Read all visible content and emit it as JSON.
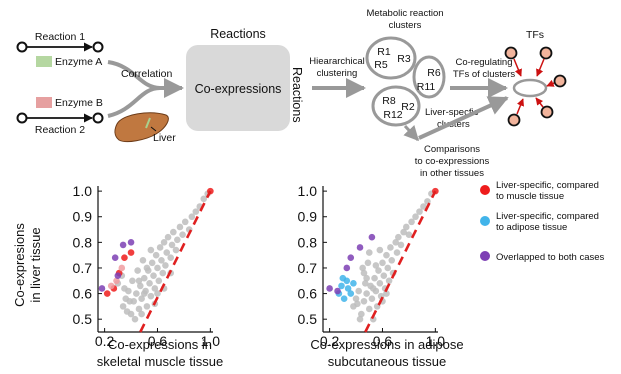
{
  "diagram": {
    "reaction1": "Reaction 1",
    "enzyme_a": "Enzyme A",
    "enzyme_b": "Enzyme B",
    "reaction2": "Reaction 2",
    "liver": "Liver",
    "correlation": "Correlation",
    "reactions_top": "Reactions",
    "reactions_side": "Reactions",
    "coexpressions": "Co-expressions",
    "hier_line1": "Hieararchical",
    "hier_line2": "clustering",
    "clusters_line1": "Metabolic reaction",
    "clusters_line2": "clusters",
    "c1a": "R1",
    "c1b": "R3",
    "c1c": "R5",
    "c2a": "R6",
    "c2b": "R11",
    "c3a": "R8",
    "c3b": "R2",
    "c3c": "R12",
    "liver_clusters_line1": "Liver-specfic",
    "liver_clusters_line2": "clusters",
    "coreg_line1": "Co-regulating",
    "coreg_line2": "TFs of clusters",
    "tfs": "TFs",
    "comp_line1": "Comparisons",
    "comp_line2": "to co-expressions",
    "comp_line3": "in other tissues",
    "colors": {
      "enzyme_a": "#b5d7a1",
      "enzyme_b": "#e6a0a0",
      "box": "#d9d9d9",
      "liver": "#c07840",
      "tf": "#f2b49c"
    }
  },
  "legend": {
    "items": [
      {
        "line1": "Liver-specific, compared",
        "line2": "to muscle tissue",
        "color": "#ee1c1c"
      },
      {
        "line1": "Liver-specific, compared",
        "line2": "to adipose tissue",
        "color": "#41b4ea"
      },
      {
        "line1": "Overlapped to both cases",
        "line2": "",
        "color": "#7d3fb4"
      }
    ]
  },
  "chart_data": [
    {
      "type": "scatter",
      "ylabel_line1": "Co-expresions",
      "ylabel_line2": "in liver tissue",
      "xlabel_line1": "Co-expressions in",
      "xlabel_line2": "skeletal muscle tissue",
      "xticks": [
        "0.2",
        "0.6",
        "1.0"
      ],
      "yticks": [
        "1.0",
        "0.9",
        "0.8",
        "0.7",
        "0.6",
        "0.5"
      ],
      "xlim": [
        0.15,
        1.02
      ],
      "ylim": [
        0.45,
        1.02
      ],
      "diagonal_color": "#e02020",
      "series": [
        {
          "color": "#bdbdbd",
          "points": [
            [
              0.34,
              0.55
            ],
            [
              0.36,
              0.58
            ],
            [
              0.38,
              0.61
            ],
            [
              0.4,
              0.52
            ],
            [
              0.42,
              0.57
            ],
            [
              0.44,
              0.6
            ],
            [
              0.46,
              0.54
            ],
            [
              0.47,
              0.63
            ],
            [
              0.48,
              0.58
            ],
            [
              0.5,
              0.66
            ],
            [
              0.51,
              0.61
            ],
            [
              0.52,
              0.55
            ],
            [
              0.53,
              0.69
            ],
            [
              0.54,
              0.64
            ],
            [
              0.55,
              0.59
            ],
            [
              0.56,
              0.72
            ],
            [
              0.57,
              0.67
            ],
            [
              0.58,
              0.62
            ],
            [
              0.59,
              0.75
            ],
            [
              0.6,
              0.7
            ],
            [
              0.61,
              0.65
            ],
            [
              0.62,
              0.78
            ],
            [
              0.63,
              0.73
            ],
            [
              0.64,
              0.68
            ],
            [
              0.65,
              0.8
            ],
            [
              0.66,
              0.71
            ],
            [
              0.67,
              0.76
            ],
            [
              0.68,
              0.82
            ],
            [
              0.7,
              0.74
            ],
            [
              0.71,
              0.79
            ],
            [
              0.72,
              0.84
            ],
            [
              0.74,
              0.77
            ],
            [
              0.75,
              0.81
            ],
            [
              0.77,
              0.86
            ],
            [
              0.79,
              0.83
            ],
            [
              0.81,
              0.88
            ],
            [
              0.84,
              0.85
            ],
            [
              0.86,
              0.9
            ],
            [
              0.89,
              0.92
            ],
            [
              0.92,
              0.94
            ],
            [
              0.95,
              0.97
            ],
            [
              0.98,
              0.99
            ],
            [
              0.3,
              0.64
            ],
            [
              0.33,
              0.67
            ],
            [
              0.37,
              0.53
            ],
            [
              0.41,
              0.65
            ],
            [
              0.45,
              0.69
            ],
            [
              0.49,
              0.73
            ],
            [
              0.43,
              0.5
            ],
            [
              0.39,
              0.57
            ],
            [
              0.55,
              0.77
            ],
            [
              0.6,
              0.6
            ],
            [
              0.5,
              0.6
            ],
            [
              0.46,
              0.65
            ],
            [
              0.58,
              0.56
            ],
            [
              0.52,
              0.7
            ],
            [
              0.48,
              0.52
            ],
            [
              0.65,
              0.62
            ],
            [
              0.7,
              0.68
            ],
            [
              0.35,
              0.62
            ]
          ]
        },
        {
          "color": "#ee1c1c",
          "points": [
            [
              0.22,
              0.6
            ],
            [
              0.27,
              0.62
            ],
            [
              0.31,
              0.68
            ],
            [
              0.35,
              0.74
            ],
            [
              0.4,
              0.76
            ],
            [
              1.0,
              1.0
            ]
          ]
        },
        {
          "color": "#f09ca0",
          "points": [
            [
              0.25,
              0.63
            ],
            [
              0.29,
              0.65
            ],
            [
              0.33,
              0.7
            ]
          ]
        },
        {
          "color": "#7d3fb4",
          "points": [
            [
              0.18,
              0.62
            ],
            [
              0.28,
              0.74
            ],
            [
              0.34,
              0.79
            ],
            [
              0.4,
              0.8
            ],
            [
              0.3,
              0.67
            ]
          ]
        }
      ]
    },
    {
      "type": "scatter",
      "xlabel_line1": "Co-expressions in adipose",
      "xlabel_line2": "subcutaneous tissue",
      "xticks": [
        "0.2",
        "0.6",
        "1.0"
      ],
      "yticks": [
        "1.0",
        "0.9",
        "0.8",
        "0.7",
        "0.6",
        "0.5"
      ],
      "xlim": [
        0.15,
        1.02
      ],
      "ylim": [
        0.45,
        1.02
      ],
      "diagonal_color": "#e02020",
      "series": [
        {
          "color": "#bdbdbd",
          "points": [
            [
              0.38,
              0.55
            ],
            [
              0.4,
              0.58
            ],
            [
              0.42,
              0.61
            ],
            [
              0.44,
              0.52
            ],
            [
              0.46,
              0.57
            ],
            [
              0.48,
              0.6
            ],
            [
              0.5,
              0.54
            ],
            [
              0.51,
              0.63
            ],
            [
              0.52,
              0.58
            ],
            [
              0.54,
              0.66
            ],
            [
              0.55,
              0.61
            ],
            [
              0.56,
              0.55
            ],
            [
              0.57,
              0.69
            ],
            [
              0.58,
              0.64
            ],
            [
              0.59,
              0.59
            ],
            [
              0.6,
              0.72
            ],
            [
              0.61,
              0.67
            ],
            [
              0.62,
              0.62
            ],
            [
              0.63,
              0.75
            ],
            [
              0.64,
              0.7
            ],
            [
              0.65,
              0.65
            ],
            [
              0.66,
              0.78
            ],
            [
              0.67,
              0.73
            ],
            [
              0.68,
              0.68
            ],
            [
              0.7,
              0.8
            ],
            [
              0.71,
              0.76
            ],
            [
              0.72,
              0.82
            ],
            [
              0.74,
              0.79
            ],
            [
              0.76,
              0.84
            ],
            [
              0.78,
              0.86
            ],
            [
              0.8,
              0.83
            ],
            [
              0.82,
              0.88
            ],
            [
              0.85,
              0.9
            ],
            [
              0.88,
              0.92
            ],
            [
              0.91,
              0.94
            ],
            [
              0.94,
              0.96
            ],
            [
              0.97,
              0.99
            ],
            [
              0.46,
              0.68
            ],
            [
              0.49,
              0.72
            ],
            [
              0.53,
              0.5
            ],
            [
              0.47,
              0.64
            ],
            [
              0.45,
              0.7
            ],
            [
              0.5,
              0.76
            ],
            [
              0.43,
              0.5
            ],
            [
              0.41,
              0.56
            ],
            [
              0.58,
              0.77
            ],
            [
              0.63,
              0.6
            ],
            [
              0.53,
              0.62
            ],
            [
              0.48,
              0.66
            ],
            [
              0.6,
              0.57
            ],
            [
              0.55,
              0.71
            ]
          ]
        },
        {
          "color": "#41b4ea",
          "points": [
            [
              0.27,
              0.6
            ],
            [
              0.29,
              0.63
            ],
            [
              0.31,
              0.58
            ],
            [
              0.33,
              0.65
            ],
            [
              0.34,
              0.62
            ],
            [
              0.36,
              0.6
            ],
            [
              0.38,
              0.64
            ],
            [
              0.3,
              0.66
            ]
          ]
        },
        {
          "color": "#7d3fb4",
          "points": [
            [
              0.2,
              0.62
            ],
            [
              0.26,
              0.61
            ],
            [
              0.33,
              0.7
            ],
            [
              0.43,
              0.78
            ],
            [
              0.52,
              0.82
            ],
            [
              0.36,
              0.74
            ]
          ]
        },
        {
          "color": "#ee1c1c",
          "points": [
            [
              1.0,
              1.0
            ]
          ]
        }
      ]
    }
  ]
}
